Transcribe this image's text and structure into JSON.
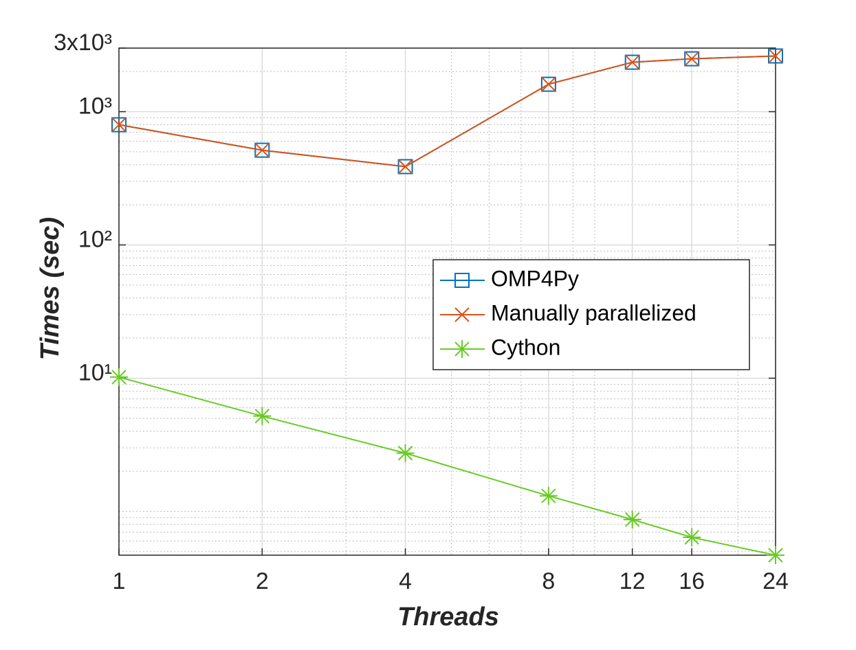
{
  "chart_data": {
    "type": "line",
    "xlabel": "Threads",
    "ylabel": "Times (sec)",
    "x": [
      1,
      2,
      4,
      8,
      12,
      16,
      24
    ],
    "xlog": true,
    "ylog": true,
    "grid": true,
    "minor_grid": true,
    "legend": "east",
    "xlim": [
      1,
      24
    ],
    "xticks": [
      1,
      2,
      4,
      8,
      12,
      16,
      24
    ],
    "ylim": [
      0.47,
      3000
    ],
    "yticks": [
      {
        "value": 10,
        "label": "10¹"
      },
      {
        "value": 100,
        "label": "10²"
      },
      {
        "value": 1000,
        "label": "10³"
      },
      {
        "value": 3000,
        "label": "3x10³"
      }
    ],
    "series": [
      {
        "name": "OMP4Py",
        "color": "#0072BD",
        "marker": "square",
        "values": [
          798,
          514,
          387,
          1607,
          2350,
          2494,
          2618
        ]
      },
      {
        "name": "Manually parallelized",
        "color": "#D95319",
        "marker": "x",
        "values": [
          798,
          514,
          387,
          1607,
          2350,
          2494,
          2618
        ]
      },
      {
        "name": "Cython",
        "color": "#66CC22",
        "marker": "asterisk",
        "values": [
          10.2,
          5.2,
          2.74,
          1.31,
          0.87,
          0.64,
          0.47
        ]
      }
    ]
  }
}
